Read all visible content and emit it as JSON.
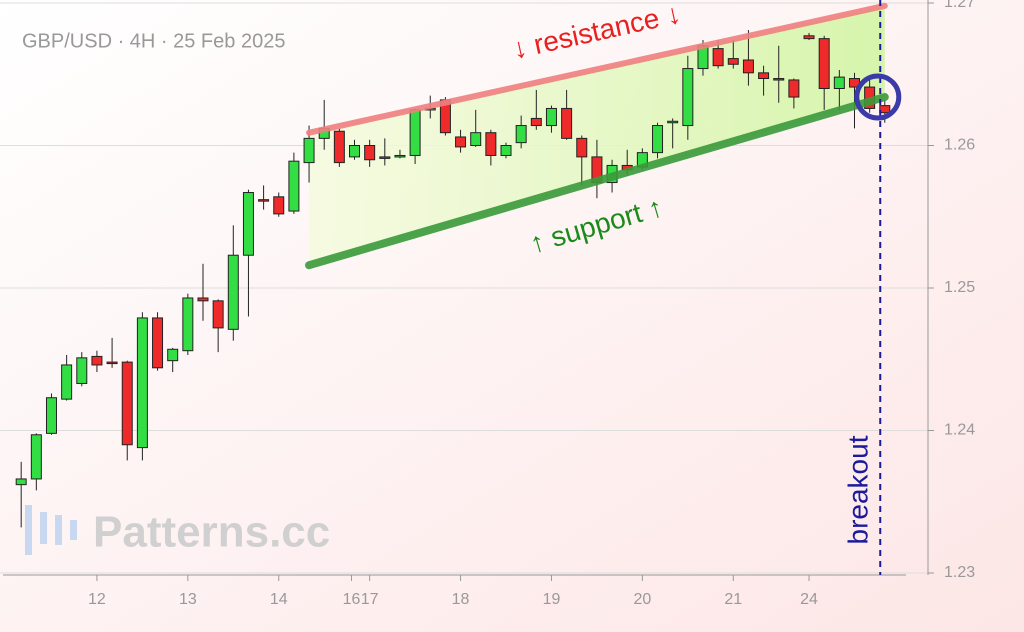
{
  "chart_data": {
    "type": "candlestick",
    "title": "GBP/USD · 4H · 25 Feb 2025",
    "watermark": "Patterns.cc",
    "up_color": "#33dd44",
    "down_color": "#ee2a2a",
    "open": [
      1.2362,
      1.2366,
      1.2398,
      1.2422,
      1.2433,
      1.2452,
      1.2448,
      1.2448,
      1.2388,
      1.2479,
      1.2449,
      1.2456,
      1.2493,
      1.2491,
      1.2471,
      1.2523,
      1.2562,
      1.2564,
      1.2554,
      1.2588,
      1.2605,
      1.261,
      1.2592,
      1.26,
      1.2592,
      1.2592,
      1.2593,
      1.2625,
      1.2632,
      1.2606,
      1.26,
      1.2609,
      1.2593,
      1.2602,
      1.2619,
      1.2614,
      1.2626,
      1.2605,
      1.2592,
      1.2574,
      1.2586,
      1.2585,
      1.2595,
      1.2616,
      1.2614,
      1.2654,
      1.2668,
      1.2661,
      1.266,
      1.2651,
      1.2647,
      1.2646,
      1.2677,
      1.2675,
      1.264,
      1.2647,
      1.2641,
      1.2628
    ],
    "high": [
      1.2378,
      1.2398,
      1.2426,
      1.2453,
      1.2455,
      1.2456,
      1.2465,
      1.2449,
      1.2483,
      1.2483,
      1.2458,
      1.2496,
      1.2517,
      1.2492,
      1.2544,
      1.2569,
      1.2572,
      1.2567,
      1.2595,
      1.2614,
      1.2632,
      1.2612,
      1.2604,
      1.2604,
      1.2605,
      1.2597,
      1.2626,
      1.2635,
      1.2634,
      1.2611,
      1.2625,
      1.2611,
      1.2602,
      1.2621,
      1.2639,
      1.2628,
      1.2639,
      1.2607,
      1.2604,
      1.259,
      1.2597,
      1.2598,
      1.2616,
      1.2619,
      1.2663,
      1.2674,
      1.2674,
      1.2674,
      1.2681,
      1.2656,
      1.267,
      1.2647,
      1.2679,
      1.2677,
      1.2653,
      1.2651,
      1.2646,
      1.2632
    ],
    "low": [
      1.2332,
      1.2358,
      1.2397,
      1.2421,
      1.2431,
      1.2441,
      1.2444,
      1.2379,
      1.2379,
      1.2442,
      1.2441,
      1.2453,
      1.2477,
      1.2455,
      1.2463,
      1.248,
      1.2555,
      1.255,
      1.2552,
      1.2574,
      1.2597,
      1.2585,
      1.259,
      1.2585,
      1.2586,
      1.2591,
      1.2587,
      1.2619,
      1.2607,
      1.2595,
      1.2599,
      1.2586,
      1.2591,
      1.2598,
      1.2611,
      1.2609,
      1.2604,
      1.2572,
      1.2563,
      1.2567,
      1.2579,
      1.2583,
      1.2591,
      1.2598,
      1.2604,
      1.2649,
      1.2654,
      1.2654,
      1.2642,
      1.2635,
      1.263,
      1.2626,
      1.2674,
      1.2625,
      1.2625,
      1.2612,
      1.2623,
      1.2616
    ],
    "close": [
      1.2366,
      1.2397,
      1.2423,
      1.2446,
      1.2451,
      1.2446,
      1.2447,
      1.239,
      1.2479,
      1.2444,
      1.2457,
      1.2493,
      1.2491,
      1.2472,
      1.2523,
      1.2567,
      1.2561,
      1.2552,
      1.2589,
      1.2605,
      1.2612,
      1.2588,
      1.26,
      1.259,
      1.2591,
      1.2593,
      1.2625,
      1.2626,
      1.2609,
      1.2599,
      1.2609,
      1.2593,
      1.26,
      1.2614,
      1.2614,
      1.2626,
      1.2605,
      1.2592,
      1.2574,
      1.2586,
      1.2583,
      1.2595,
      1.2614,
      1.2617,
      1.2654,
      1.267,
      1.2656,
      1.2657,
      1.2651,
      1.2647,
      1.2646,
      1.2634,
      1.2675,
      1.264,
      1.2648,
      1.2641,
      1.2626,
      1.2623
    ],
    "xlim": [
      -1.2,
      58.4
    ],
    "xticks": [
      {
        "value": 5,
        "label": "12"
      },
      {
        "value": 11,
        "label": "13"
      },
      {
        "value": 17,
        "label": "14"
      },
      {
        "value": 21.8,
        "label": "16"
      },
      {
        "value": 23,
        "label": "17"
      },
      {
        "value": 29,
        "label": "18"
      },
      {
        "value": 35,
        "label": "19"
      },
      {
        "value": 41,
        "label": "20"
      },
      {
        "value": 47,
        "label": "21"
      },
      {
        "value": 52,
        "label": "24"
      }
    ],
    "ylim": [
      1.23,
      1.27
    ],
    "yticks": [
      1.23,
      1.24,
      1.25,
      1.26,
      1.27
    ],
    "grid": true,
    "trendlines": [
      {
        "label": "↓ resistance ↓",
        "color": "#f08080",
        "x": [
          19,
          57
        ],
        "y": [
          1.2609,
          1.2698
        ]
      },
      {
        "label": "↑ support ↑",
        "color": "#3a9a3a",
        "x": [
          19,
          57
        ],
        "y": [
          1.2516,
          1.2634
        ]
      }
    ],
    "breakout": {
      "label": "breakout",
      "x": 56.7,
      "color": "#1a1a9a"
    },
    "highlight": {
      "x": 57,
      "y": 1.2634,
      "color": "#3a3aa8"
    }
  }
}
